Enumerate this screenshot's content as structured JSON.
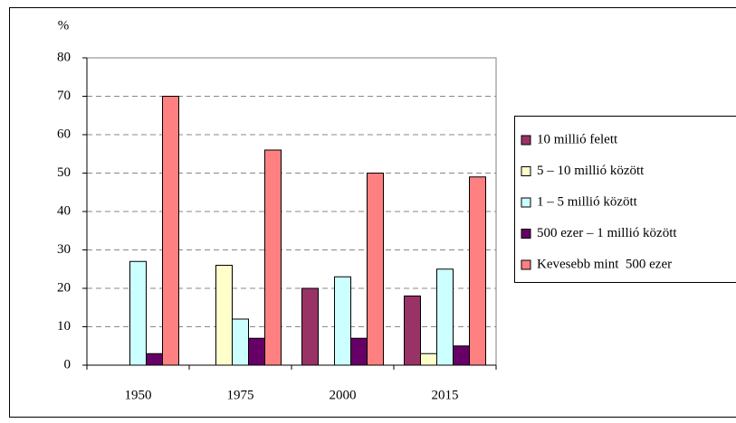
{
  "chart_data": {
    "type": "bar",
    "y_label": "%",
    "categories": [
      "1950",
      "1975",
      "2000",
      "2015"
    ],
    "series": [
      {
        "name": "10 millió felett",
        "color": "#993366",
        "values": [
          0,
          0,
          20,
          18
        ]
      },
      {
        "name": "5 – 10 millió között",
        "color": "#ffffcc",
        "values": [
          0,
          26,
          0,
          3
        ]
      },
      {
        "name": "1 – 5 millió között",
        "color": "#ccffff",
        "values": [
          27,
          12,
          23,
          25
        ]
      },
      {
        "name": "500 ezer – 1 millió között",
        "color": "#660066",
        "values": [
          3,
          7,
          7,
          5
        ]
      },
      {
        "name": "Kevesebb mint  500 ezer",
        "color": "#ff8080",
        "values": [
          70,
          56,
          50,
          49
        ]
      }
    ],
    "ylim": [
      0,
      80
    ],
    "yticks": [
      0,
      10,
      20,
      30,
      40,
      50,
      60,
      70,
      80
    ],
    "grid": true,
    "legend": "right"
  }
}
